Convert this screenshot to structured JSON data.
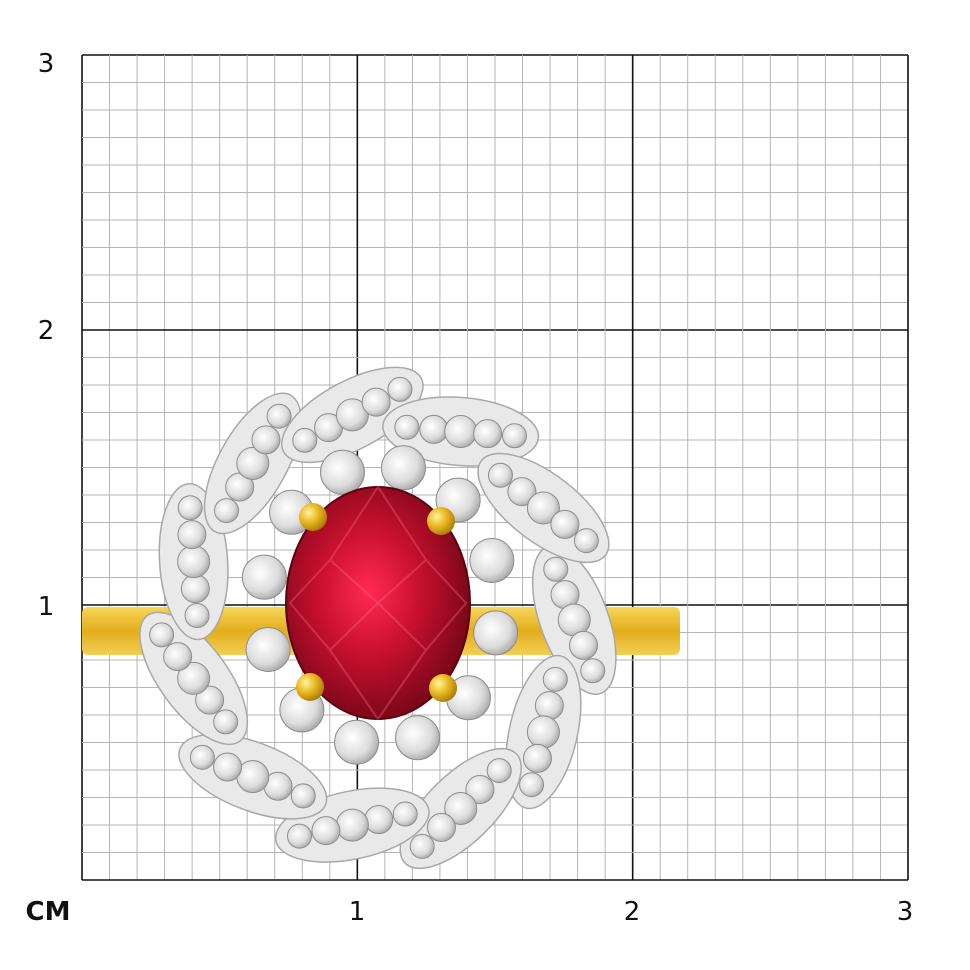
{
  "scale": {
    "unit_label": "CM",
    "x_ticks": [
      "1",
      "2",
      "3"
    ],
    "y_ticks": [
      "1",
      "2",
      "3"
    ],
    "range_cm": [
      0,
      3
    ],
    "minor_divisions_per_cm": 10
  },
  "product": {
    "description_visible": false,
    "center_stone_color": "#b0102c",
    "metal_band_color": "#e3b52a",
    "cluster_metal_color": "#e6e6e6",
    "prong_color": "#e8b820"
  }
}
